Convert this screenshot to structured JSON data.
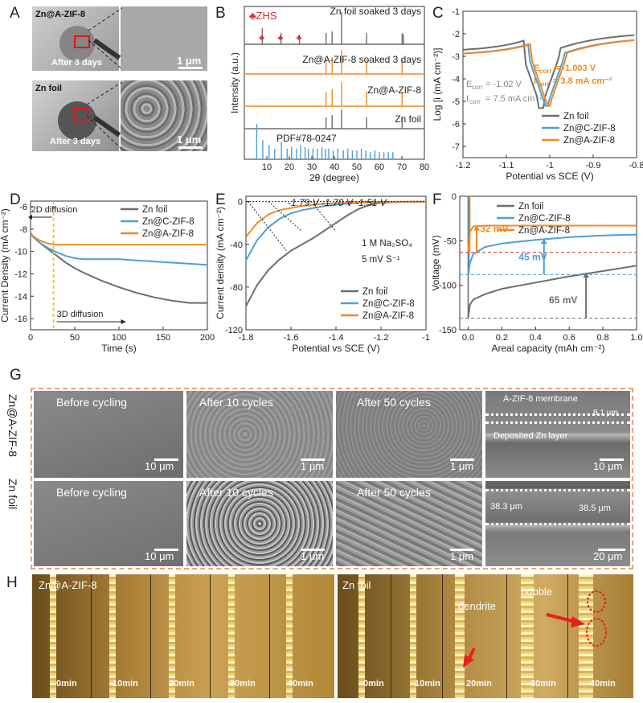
{
  "panel_letters": {
    "A": "A",
    "B": "B",
    "C": "C",
    "D": "D",
    "E": "E",
    "F": "F",
    "G": "G",
    "H": "H"
  },
  "panel_a": {
    "top_label": "Zn@A-ZIF-8",
    "top_caption": "After 3 days",
    "bottom_label": "Zn foil",
    "bottom_caption": "After 3 days",
    "scalebar_top": "1 μm",
    "scalebar_bottom": "1 μm"
  },
  "panel_g": {
    "row1_label": "Zn@A-ZIF-8",
    "row2_label": "Zn foil",
    "row1": [
      "Before  cycling",
      "After 10 cycles",
      "After 50 cycles"
    ],
    "row2": [
      "Before  cycling",
      "After 10 cycles",
      "After 50 cycles"
    ],
    "row1_scalebars": [
      "10 μm",
      "1 μm",
      "1 μm",
      "10 μm"
    ],
    "row2_scalebars": [
      "10 μm",
      "1 μm",
      "1 μm",
      "20 μm"
    ],
    "membrane_label": "A-ZIF-8 membrane",
    "deposited_label": "Deposited Zn layer",
    "thickness_zif": "8.1 μm",
    "thickness_zn_left": "38.3 μm",
    "thickness_zn_right": "38.5 μm"
  },
  "panel_h": {
    "left_label": "Zn@A-ZIF-8",
    "right_label": "Zn foil",
    "dendrite_label": "dendrite",
    "bubble_label": "bubble",
    "left_times": [
      "0min",
      "10min",
      "20min",
      "30min",
      "40min"
    ],
    "right_times": [
      "0min",
      "10min",
      "20min",
      "30min",
      "40min"
    ]
  },
  "colors": {
    "zn": "#6e6e6e",
    "czif": "#4d9fd8",
    "azif": "#f28a1e",
    "red": "#d42a2a",
    "pdf": "#4d9fd8"
  },
  "chart_data": [
    {
      "id": "B",
      "type": "line",
      "title": "",
      "xlabel": "2θ (degree)",
      "ylabel": "Intensity (a.u.)",
      "xlim": [
        0,
        80
      ],
      "xticks": [
        10,
        20,
        30,
        40,
        50,
        60,
        70,
        80
      ],
      "legend_marker": "♣ZHS",
      "series": [
        {
          "name": "Zn foil soaked 3 days",
          "color": "#6e6e6e",
          "peaks": [
            [
              8,
              0.5
            ],
            [
              16.3,
              0.35
            ],
            [
              24.5,
              0.3
            ],
            [
              36.3,
              0.35
            ],
            [
              39,
              0.4
            ],
            [
              43.2,
              1.0
            ],
            [
              54.3,
              0.35
            ],
            [
              70.1,
              0.35
            ],
            [
              70.7,
              0.3
            ]
          ]
        },
        {
          "name": "Zn@A-ZIF-8 soaked 3 days",
          "color": "#f28a1e",
          "peaks": [
            [
              36.3,
              0.6
            ],
            [
              39,
              0.7
            ],
            [
              43.2,
              1.0
            ],
            [
              54.3,
              0.6
            ],
            [
              70.1,
              0.6
            ]
          ]
        },
        {
          "name": "Zn@A-ZIF-8",
          "color": "#f28a1e",
          "peaks": [
            [
              36.3,
              0.6
            ],
            [
              39,
              0.7
            ],
            [
              43.2,
              1.0
            ],
            [
              54.3,
              0.6
            ],
            [
              70.1,
              0.6
            ]
          ]
        },
        {
          "name": "Zn foil",
          "color": "#6e6e6e",
          "peaks": [
            [
              36.3,
              0.6
            ],
            [
              39,
              0.7
            ],
            [
              43.2,
              1.0
            ],
            [
              54.3,
              0.6
            ],
            [
              70.1,
              0.6
            ]
          ]
        },
        {
          "name": "PDF#78-0247",
          "color": "#4d9fd8",
          "peaks": [
            [
              5.5,
              1.0
            ],
            [
              8.2,
              0.55
            ],
            [
              11,
              0.4
            ],
            [
              13.5,
              0.3
            ],
            [
              16.5,
              0.5
            ],
            [
              19,
              0.3
            ],
            [
              21,
              0.35
            ],
            [
              23.2,
              0.3
            ],
            [
              25,
              0.4
            ],
            [
              27,
              0.35
            ],
            [
              28.5,
              0.3
            ],
            [
              30.5,
              0.3
            ],
            [
              32.5,
              0.3
            ],
            [
              34.5,
              0.35
            ],
            [
              36,
              0.3
            ],
            [
              37.5,
              0.3
            ],
            [
              39.5,
              0.25
            ],
            [
              41.5,
              0.3
            ],
            [
              44,
              0.25
            ],
            [
              46,
              0.3
            ],
            [
              48,
              0.25
            ],
            [
              50,
              0.25
            ],
            [
              52,
              0.3
            ],
            [
              54,
              0.25
            ],
            [
              56,
              0.2
            ],
            [
              58,
              0.25
            ],
            [
              60,
              0.2
            ],
            [
              62,
              0.2
            ],
            [
              64,
              0.2
            ],
            [
              66,
              0.2
            ]
          ]
        }
      ]
    },
    {
      "id": "C",
      "type": "line",
      "xlabel": "Potential vs SCE (V)",
      "ylabel": "Log [i (mA cm⁻²)]",
      "xlim": [
        -1.2,
        -0.8
      ],
      "ylim": [
        -7.5,
        -1
      ],
      "xticks": [
        -1.2,
        -1.1,
        -1.0,
        -0.9,
        -0.8
      ],
      "yticks": [
        -7,
        -6,
        -5,
        -4,
        -3,
        -2,
        -1
      ],
      "annotations": {
        "ecorr_azif": "= -1.003 V",
        "icorr_azif": "= 3.8 mA cm⁻²",
        "ecorr_zn": "= -1.02 V",
        "icorr_zn": "= 7.5 mA cm⁻²"
      },
      "series": [
        {
          "name": "Zn foil",
          "color": "#6e6e6e",
          "ecorr": -1.02,
          "left": -1.35,
          "right": -1.3
        },
        {
          "name": "Zn@C-ZIF-8",
          "color": "#4d9fd8",
          "ecorr": -1.008,
          "left": -1.55,
          "right": -1.5
        },
        {
          "name": "Zn@A-ZIF-8",
          "color": "#f28a1e",
          "ecorr": -1.003,
          "left": -1.7,
          "right": -1.65
        }
      ]
    },
    {
      "id": "D",
      "type": "line",
      "xlabel": "Time (s)",
      "ylabel": "Current Density (mA cm⁻²)",
      "xlim": [
        0,
        200
      ],
      "ylim": [
        -17,
        -5.5
      ],
      "xticks": [
        0,
        50,
        100,
        150,
        200
      ],
      "yticks": [
        -16,
        -14,
        -12,
        -10,
        -8,
        -6
      ],
      "annotations": {
        "diff2d": "2D diffusion",
        "diff3d": "3D diffusion",
        "vline_x": 26
      },
      "series": [
        {
          "name": "Zn foil",
          "color": "#6e6e6e",
          "x": [
            0,
            10,
            20,
            30,
            40,
            50,
            60,
            80,
            100,
            120,
            140,
            160,
            180,
            200
          ],
          "y": [
            -8.4,
            -9.2,
            -9.8,
            -10.4,
            -11.0,
            -11.5,
            -11.9,
            -12.6,
            -13.2,
            -13.7,
            -14.1,
            -14.4,
            -14.6,
            -14.6
          ]
        },
        {
          "name": "Zn@C-ZIF-8",
          "color": "#4d9fd8",
          "x": [
            0,
            10,
            20,
            30,
            40,
            50,
            60,
            80,
            100,
            120,
            140,
            160,
            180,
            200
          ],
          "y": [
            -8.5,
            -9.2,
            -9.7,
            -10.1,
            -10.4,
            -10.6,
            -10.7,
            -10.7,
            -10.7,
            -10.8,
            -10.9,
            -11.0,
            -11.1,
            -11.2
          ]
        },
        {
          "name": "Zn@A-ZIF-8",
          "color": "#f28a1e",
          "x": [
            0,
            10,
            20,
            30,
            40,
            60,
            80,
            100,
            120,
            140,
            160,
            180,
            200
          ],
          "y": [
            -8.5,
            -9.0,
            -9.3,
            -9.4,
            -9.4,
            -9.4,
            -9.4,
            -9.4,
            -9.4,
            -9.4,
            -9.4,
            -9.4,
            -9.4
          ]
        }
      ]
    },
    {
      "id": "E",
      "type": "line",
      "xlabel": "Potential vs SCE (V)",
      "ylabel": "Current density (mA cm⁻²)",
      "xlim": [
        -1.8,
        -1.0
      ],
      "ylim": [
        -120,
        5
      ],
      "xticks": [
        -1.8,
        -1.6,
        -1.4,
        -1.2,
        -1.0
      ],
      "yticks": [
        0,
        -40,
        -80,
        -120
      ],
      "annotations": {
        "onsets": "-1.79 V  -1.70 V  -1.51 V",
        "electrolyte": "1 M Na₂SO₄",
        "scan": "5 mV S⁻¹"
      },
      "series": [
        {
          "name": "Zn foil",
          "color": "#6e6e6e",
          "x": [
            -1.8,
            -1.75,
            -1.7,
            -1.65,
            -1.6,
            -1.55,
            -1.5,
            -1.45,
            -1.4,
            -1.35,
            -1.3,
            -1.25,
            -1.2,
            -1.1,
            -1.0
          ],
          "y": [
            -98,
            -78,
            -64,
            -54,
            -46,
            -40,
            -34,
            -27,
            -20,
            -13,
            -7,
            -3,
            -1,
            -0.3,
            0
          ]
        },
        {
          "name": "Zn@C-ZIF-8",
          "color": "#4d9fd8",
          "x": [
            -1.8,
            -1.75,
            -1.7,
            -1.65,
            -1.6,
            -1.55,
            -1.5,
            -1.45,
            -1.4,
            -1.35,
            -1.3,
            -1.2,
            -1.0
          ],
          "y": [
            -55,
            -36,
            -24,
            -16,
            -11,
            -8,
            -6,
            -4,
            -3,
            -2,
            -1,
            -0.5,
            0
          ]
        },
        {
          "name": "Zn@A-ZIF-8",
          "color": "#f28a1e",
          "x": [
            -1.8,
            -1.75,
            -1.7,
            -1.65,
            -1.6,
            -1.55,
            -1.5,
            -1.45,
            -1.4,
            -1.35,
            -1.3,
            -1.2,
            -1.0
          ],
          "y": [
            -33,
            -20,
            -12,
            -8,
            -6,
            -4,
            -3,
            -2,
            -1.5,
            -1,
            -0.5,
            -0.2,
            0
          ]
        }
      ]
    },
    {
      "id": "F",
      "type": "line",
      "xlabel": "Areal capacity (mAh cm⁻²)",
      "ylabel": "Voltage (mV)",
      "xlim": [
        -0.05,
        1.0
      ],
      "ylim": [
        -150,
        0
      ],
      "xticks": [
        0.0,
        0.2,
        0.4,
        0.6,
        0.8,
        1.0
      ],
      "yticks": [
        0,
        -50,
        -100,
        -150
      ],
      "annotations": {
        "azif_over": "32 mV",
        "czif_over": "45 mV",
        "zn_over": "65 mV"
      },
      "series": [
        {
          "name": "Zn foil",
          "color": "#6e6e6e",
          "x": [
            0,
            0.01,
            0.03,
            0.1,
            0.2,
            0.4,
            0.6,
            0.8,
            1.0
          ],
          "y": [
            -137,
            -122,
            -116,
            -110,
            -104,
            -97,
            -90,
            -84,
            -78
          ]
        },
        {
          "name": "Zn@C-ZIF-8",
          "color": "#4d9fd8",
          "x": [
            0,
            0.01,
            0.03,
            0.1,
            0.2,
            0.4,
            0.6,
            0.8,
            1.0
          ],
          "y": [
            -88,
            -75,
            -65,
            -57,
            -53,
            -49,
            -46,
            -44,
            -43
          ]
        },
        {
          "name": "Zn@A-ZIF-8",
          "color": "#f28a1e",
          "x": [
            0,
            0.01,
            0.03,
            0.1,
            0.2,
            0.4,
            0.6,
            0.8,
            1.0
          ],
          "y": [
            -63,
            -40,
            -34,
            -33,
            -33,
            -33,
            -33,
            -33,
            -33
          ]
        }
      ]
    }
  ]
}
